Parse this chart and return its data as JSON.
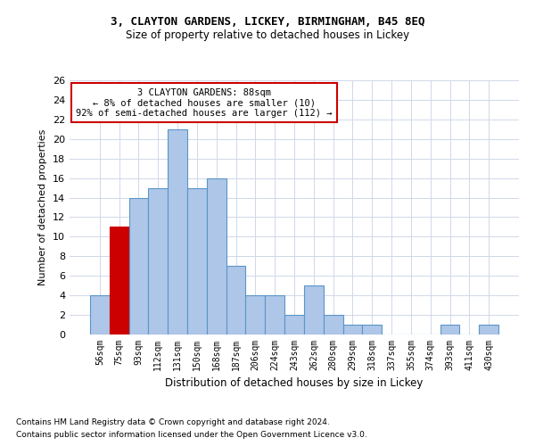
{
  "title1": "3, CLAYTON GARDENS, LICKEY, BIRMINGHAM, B45 8EQ",
  "title2": "Size of property relative to detached houses in Lickey",
  "xlabel": "Distribution of detached houses by size in Lickey",
  "ylabel": "Number of detached properties",
  "categories": [
    "56sqm",
    "75sqm",
    "93sqm",
    "112sqm",
    "131sqm",
    "150sqm",
    "168sqm",
    "187sqm",
    "206sqm",
    "224sqm",
    "243sqm",
    "262sqm",
    "280sqm",
    "299sqm",
    "318sqm",
    "337sqm",
    "355sqm",
    "374sqm",
    "393sqm",
    "411sqm",
    "430sqm"
  ],
  "values": [
    4,
    11,
    14,
    15,
    21,
    15,
    16,
    7,
    4,
    4,
    2,
    5,
    2,
    1,
    1,
    0,
    0,
    0,
    1,
    0,
    1
  ],
  "highlight_index": 1,
  "bar_color": "#aec6e8",
  "bar_edge_color": "#5a96c8",
  "highlight_color": "#cc0000",
  "highlight_edge_color": "#cc0000",
  "ylim": [
    0,
    26
  ],
  "yticks": [
    0,
    2,
    4,
    6,
    8,
    10,
    12,
    14,
    16,
    18,
    20,
    22,
    24,
    26
  ],
  "annotation_text": "3 CLAYTON GARDENS: 88sqm\n← 8% of detached houses are smaller (10)\n92% of semi-detached houses are larger (112) →",
  "annotation_box_color": "#ffffff",
  "annotation_box_edge_color": "#cc0000",
  "footnote1": "Contains HM Land Registry data © Crown copyright and database right 2024.",
  "footnote2": "Contains public sector information licensed under the Open Government Licence v3.0.",
  "background_color": "#ffffff",
  "grid_color": "#d0d8e8"
}
